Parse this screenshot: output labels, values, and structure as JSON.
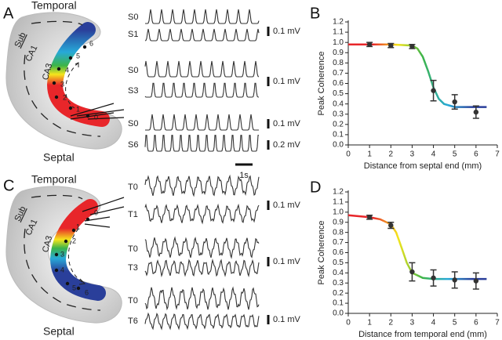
{
  "panels": {
    "a": "A",
    "b": "B",
    "c": "C",
    "d": "D"
  },
  "diagram_a": {
    "top": "Temporal",
    "bottom": "Septal",
    "sub": "Sub",
    "ca1": "CA1",
    "ca3": "CA3",
    "sites": [
      "0",
      "1",
      "2",
      "3",
      "4",
      "5",
      "6"
    ]
  },
  "diagram_c": {
    "top": "Temporal",
    "bottom": "Septal",
    "sub": "Sub",
    "ca1": "CA1",
    "ca3": "CA3",
    "sites": [
      "0",
      "1",
      "2",
      "3",
      "4",
      "5",
      "6"
    ]
  },
  "traces_a": {
    "rows": [
      "S0",
      "S1",
      "S0",
      "S3",
      "S0",
      "S6"
    ],
    "scales": [
      "0.1 mV",
      "0.1 mV",
      "0.1 mV",
      "0.2 mV"
    ],
    "time": "1s"
  },
  "traces_c": {
    "rows": [
      "T0",
      "T1",
      "T0",
      "T3",
      "T0",
      "T6"
    ],
    "scales": [
      "0.1 mV",
      "0.1 mV",
      "0.1 mV"
    ]
  },
  "chart_data": [
    {
      "type": "scatter",
      "xlabel": "Distance from septal end (mm)",
      "ylabel": "Peak Coherence",
      "color": "#333",
      "x": [
        1,
        2,
        3,
        4,
        5,
        6
      ],
      "values": [
        0.98,
        0.97,
        0.96,
        0.53,
        0.42,
        0.32
      ],
      "errors": [
        0.02,
        0.02,
        0.02,
        0.1,
        0.07,
        0.06
      ],
      "fit": {
        "x": [
          0,
          1,
          2,
          3,
          3.25,
          3.5,
          3.75,
          4,
          4.25,
          4.5,
          5,
          5.5,
          6,
          6.5
        ],
        "values": [
          0.98,
          0.98,
          0.98,
          0.97,
          0.94,
          0.86,
          0.72,
          0.56,
          0.45,
          0.4,
          0.37,
          0.37,
          0.37,
          0.37
        ],
        "colors": [
          "#e8262a",
          "#e8262a",
          "#f5e51c",
          "#3cb44a",
          "#27a9d8",
          "#2a3f9a",
          "#2a3f9a"
        ]
      },
      "xlim": [
        0,
        7
      ],
      "xticks": [
        0,
        1,
        2,
        3,
        4,
        5,
        6,
        7
      ],
      "ylim": [
        0,
        1.2
      ],
      "yticks": [
        {
          "value": 0,
          "label": "0.0"
        },
        0.1,
        0.2,
        0.3,
        0.4,
        0.5,
        0.6,
        0.7,
        0.8,
        0.9,
        {
          "value": 1,
          "label": "1.0"
        },
        1.1,
        1.2
      ]
    },
    {
      "type": "scatter",
      "xlabel": "Distance from temporal end (mm)",
      "ylabel": "Peak Coherence",
      "color": "#333",
      "x": [
        1,
        2,
        3,
        4,
        5,
        6
      ],
      "values": [
        0.95,
        0.87,
        0.41,
        0.35,
        0.33,
        0.32
      ],
      "errors": [
        0.02,
        0.03,
        0.09,
        0.08,
        0.08,
        0.08
      ],
      "fit": {
        "x": [
          0,
          1,
          1.5,
          2,
          2.25,
          2.5,
          2.75,
          3,
          3.5,
          4,
          5,
          6,
          6.5
        ],
        "values": [
          0.97,
          0.95,
          0.93,
          0.88,
          0.8,
          0.65,
          0.5,
          0.4,
          0.35,
          0.34,
          0.34,
          0.34,
          0.34
        ],
        "colors": [
          "#e8262a",
          "#e8262a",
          "#f5e51c",
          "#3cb44a",
          "#27a9d8",
          "#2a3f9a",
          "#2a3f9a"
        ]
      },
      "xlim": [
        0,
        7
      ],
      "xticks": [
        0,
        1,
        2,
        3,
        4,
        5,
        6,
        7
      ],
      "ylim": [
        0,
        1.2
      ],
      "yticks": [
        {
          "value": 0,
          "label": "0.0"
        },
        0.1,
        0.2,
        0.3,
        0.4,
        0.5,
        0.6,
        0.7,
        0.8,
        0.9,
        {
          "value": 1,
          "label": "1.0"
        },
        1.1,
        1.2
      ]
    }
  ]
}
